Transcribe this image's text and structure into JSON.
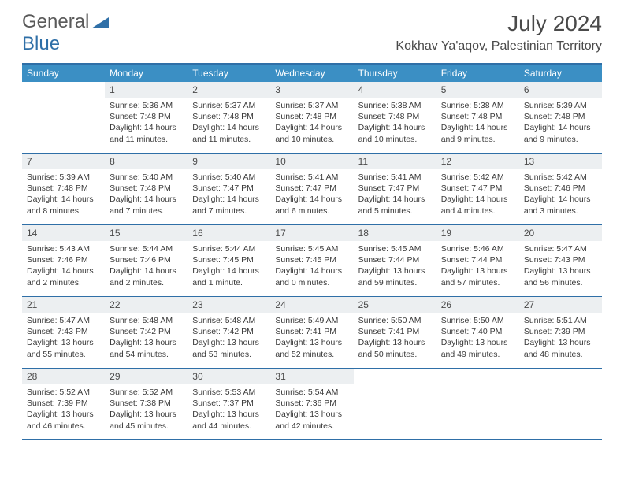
{
  "logo": {
    "text1": "General",
    "text2": "Blue"
  },
  "title": "July 2024",
  "location": "Kokhav Ya'aqov, Palestinian Territory",
  "colors": {
    "headerBlue": "#3b8fc4",
    "borderBlue": "#2f6fa7",
    "dayNumBg": "#eceff1",
    "text": "#4a4a4a"
  },
  "weekdays": [
    "Sunday",
    "Monday",
    "Tuesday",
    "Wednesday",
    "Thursday",
    "Friday",
    "Saturday"
  ],
  "weeks": [
    [
      null,
      {
        "n": "1",
        "sr": "5:36 AM",
        "ss": "7:48 PM",
        "dl": "14 hours and 11 minutes."
      },
      {
        "n": "2",
        "sr": "5:37 AM",
        "ss": "7:48 PM",
        "dl": "14 hours and 11 minutes."
      },
      {
        "n": "3",
        "sr": "5:37 AM",
        "ss": "7:48 PM",
        "dl": "14 hours and 10 minutes."
      },
      {
        "n": "4",
        "sr": "5:38 AM",
        "ss": "7:48 PM",
        "dl": "14 hours and 10 minutes."
      },
      {
        "n": "5",
        "sr": "5:38 AM",
        "ss": "7:48 PM",
        "dl": "14 hours and 9 minutes."
      },
      {
        "n": "6",
        "sr": "5:39 AM",
        "ss": "7:48 PM",
        "dl": "14 hours and 9 minutes."
      }
    ],
    [
      {
        "n": "7",
        "sr": "5:39 AM",
        "ss": "7:48 PM",
        "dl": "14 hours and 8 minutes."
      },
      {
        "n": "8",
        "sr": "5:40 AM",
        "ss": "7:48 PM",
        "dl": "14 hours and 7 minutes."
      },
      {
        "n": "9",
        "sr": "5:40 AM",
        "ss": "7:47 PM",
        "dl": "14 hours and 7 minutes."
      },
      {
        "n": "10",
        "sr": "5:41 AM",
        "ss": "7:47 PM",
        "dl": "14 hours and 6 minutes."
      },
      {
        "n": "11",
        "sr": "5:41 AM",
        "ss": "7:47 PM",
        "dl": "14 hours and 5 minutes."
      },
      {
        "n": "12",
        "sr": "5:42 AM",
        "ss": "7:47 PM",
        "dl": "14 hours and 4 minutes."
      },
      {
        "n": "13",
        "sr": "5:42 AM",
        "ss": "7:46 PM",
        "dl": "14 hours and 3 minutes."
      }
    ],
    [
      {
        "n": "14",
        "sr": "5:43 AM",
        "ss": "7:46 PM",
        "dl": "14 hours and 2 minutes."
      },
      {
        "n": "15",
        "sr": "5:44 AM",
        "ss": "7:46 PM",
        "dl": "14 hours and 2 minutes."
      },
      {
        "n": "16",
        "sr": "5:44 AM",
        "ss": "7:45 PM",
        "dl": "14 hours and 1 minute."
      },
      {
        "n": "17",
        "sr": "5:45 AM",
        "ss": "7:45 PM",
        "dl": "14 hours and 0 minutes."
      },
      {
        "n": "18",
        "sr": "5:45 AM",
        "ss": "7:44 PM",
        "dl": "13 hours and 59 minutes."
      },
      {
        "n": "19",
        "sr": "5:46 AM",
        "ss": "7:44 PM",
        "dl": "13 hours and 57 minutes."
      },
      {
        "n": "20",
        "sr": "5:47 AM",
        "ss": "7:43 PM",
        "dl": "13 hours and 56 minutes."
      }
    ],
    [
      {
        "n": "21",
        "sr": "5:47 AM",
        "ss": "7:43 PM",
        "dl": "13 hours and 55 minutes."
      },
      {
        "n": "22",
        "sr": "5:48 AM",
        "ss": "7:42 PM",
        "dl": "13 hours and 54 minutes."
      },
      {
        "n": "23",
        "sr": "5:48 AM",
        "ss": "7:42 PM",
        "dl": "13 hours and 53 minutes."
      },
      {
        "n": "24",
        "sr": "5:49 AM",
        "ss": "7:41 PM",
        "dl": "13 hours and 52 minutes."
      },
      {
        "n": "25",
        "sr": "5:50 AM",
        "ss": "7:41 PM",
        "dl": "13 hours and 50 minutes."
      },
      {
        "n": "26",
        "sr": "5:50 AM",
        "ss": "7:40 PM",
        "dl": "13 hours and 49 minutes."
      },
      {
        "n": "27",
        "sr": "5:51 AM",
        "ss": "7:39 PM",
        "dl": "13 hours and 48 minutes."
      }
    ],
    [
      {
        "n": "28",
        "sr": "5:52 AM",
        "ss": "7:39 PM",
        "dl": "13 hours and 46 minutes."
      },
      {
        "n": "29",
        "sr": "5:52 AM",
        "ss": "7:38 PM",
        "dl": "13 hours and 45 minutes."
      },
      {
        "n": "30",
        "sr": "5:53 AM",
        "ss": "7:37 PM",
        "dl": "13 hours and 44 minutes."
      },
      {
        "n": "31",
        "sr": "5:54 AM",
        "ss": "7:36 PM",
        "dl": "13 hours and 42 minutes."
      },
      null,
      null,
      null
    ]
  ],
  "labels": {
    "sunrise": "Sunrise: ",
    "sunset": "Sunset: ",
    "daylight": "Daylight: "
  }
}
